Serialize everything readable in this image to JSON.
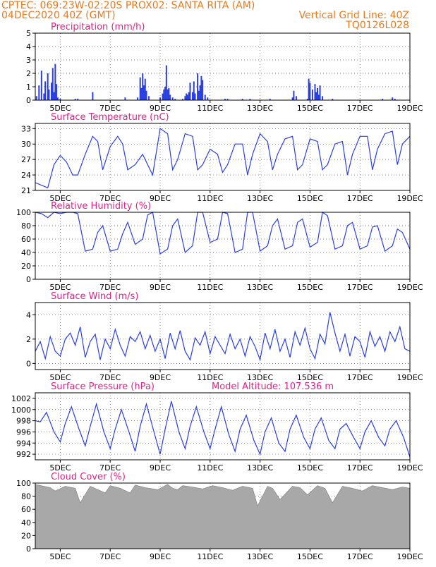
{
  "header": {
    "line1_left": "CPTEC:   069:23W-02:20S   PROX02: SANTA RITA (AM)",
    "line2_left": "04DEC2020 40Z (GMT)",
    "line2_right": "Vertical Grid Line: 40Z",
    "line3_right": "TQ0126L028"
  },
  "colors": {
    "series": "#2b3fe0",
    "cloud": "#a8a8a8",
    "header": "#e87a1e",
    "title": "#e0228c"
  },
  "x_axis": {
    "start_day": 4,
    "end_day": 19,
    "tick_days": [
      5,
      7,
      9,
      11,
      13,
      15,
      17,
      19
    ],
    "tick_labels": [
      "5DEC",
      "7DEC",
      "9DEC",
      "11DEC",
      "13DEC",
      "15DEC",
      "17DEC",
      "19DEC"
    ]
  },
  "chart_data": [
    {
      "id": "precip",
      "type": "bar",
      "title": "Precipitation (mm/h)",
      "ylim": [
        0,
        5
      ],
      "yticks": [
        0,
        1,
        2,
        3,
        4,
        5
      ],
      "grid": true,
      "x_unit": "day of December 2020",
      "x": [
        4.05,
        4.15,
        4.25,
        4.35,
        4.4,
        4.5,
        4.55,
        4.65,
        4.7,
        4.75,
        4.8,
        4.85,
        4.9,
        5.0,
        5.6,
        5.7,
        6.3,
        7.6,
        8.1,
        8.2,
        8.25,
        8.3,
        8.35,
        8.4,
        8.45,
        8.55,
        9.0,
        9.1,
        9.15,
        9.2,
        9.25,
        9.3,
        9.35,
        9.4,
        9.5,
        9.6,
        9.9,
        10.0,
        10.05,
        10.1,
        10.15,
        10.2,
        10.3,
        10.35,
        10.4,
        10.5,
        10.55,
        10.6,
        10.65,
        10.7,
        10.8,
        10.9,
        11.6,
        11.7,
        12.3,
        12.6,
        13.4,
        14.3,
        14.35,
        14.45,
        14.9,
        14.95,
        15.0,
        15.1,
        15.2,
        15.25,
        15.3,
        15.35,
        15.4,
        15.5,
        15.9,
        17.9,
        18.3,
        18.4
      ],
      "values": [
        0.3,
        1.1,
        2.2,
        0.5,
        1.4,
        2.0,
        0.8,
        1.3,
        2.4,
        0.6,
        2.7,
        1.2,
        0.2,
        0.1,
        0.1,
        0.1,
        0.6,
        0.2,
        0.2,
        1.7,
        0.9,
        2.0,
        1.1,
        1.6,
        0.7,
        0.3,
        0.2,
        0.5,
        0.8,
        1.0,
        2.6,
        0.8,
        0.9,
        0.4,
        0.2,
        0.1,
        0.1,
        0.3,
        0.5,
        0.4,
        0.6,
        1.3,
        0.6,
        1.4,
        0.5,
        2.0,
        0.7,
        1.1,
        1.8,
        1.5,
        0.4,
        0.2,
        0.1,
        0.1,
        0.1,
        0.1,
        0.1,
        0.2,
        0.7,
        0.3,
        0.1,
        1.6,
        1.3,
        0.8,
        1.2,
        0.6,
        0.9,
        0.4,
        1.1,
        0.3,
        0.1,
        0.1,
        0.2,
        0.1
      ]
    },
    {
      "id": "temperature",
      "type": "line",
      "title": "Surface Temperature (nC)",
      "ylim": [
        21,
        34
      ],
      "yticks": [
        21,
        24,
        27,
        30,
        33
      ],
      "grid": true,
      "x_unit": "day of December 2020",
      "x": [
        4.0,
        4.25,
        4.5,
        4.75,
        5.0,
        5.25,
        5.5,
        5.7,
        6.0,
        6.3,
        6.5,
        6.7,
        7.0,
        7.3,
        7.5,
        7.7,
        8.0,
        8.3,
        8.5,
        8.7,
        9.0,
        9.3,
        9.5,
        9.7,
        10.0,
        10.3,
        10.5,
        10.7,
        11.0,
        11.3,
        11.5,
        11.7,
        12.0,
        12.3,
        12.5,
        12.7,
        13.0,
        13.3,
        13.5,
        13.7,
        14.0,
        14.3,
        14.5,
        14.7,
        15.0,
        15.3,
        15.5,
        15.7,
        16.0,
        16.3,
        16.5,
        16.7,
        17.0,
        17.3,
        17.5,
        17.7,
        18.0,
        18.3,
        18.5,
        18.7,
        19.0
      ],
      "values": [
        22.5,
        22.0,
        21.5,
        26.0,
        27.8,
        26.5,
        24.0,
        24.0,
        28.0,
        31.5,
        30.5,
        25.0,
        29.5,
        31.5,
        30.0,
        25.0,
        26.0,
        28.0,
        26.0,
        24.0,
        33.0,
        32.0,
        25.0,
        27.0,
        32.0,
        31.5,
        25.0,
        26.0,
        29.0,
        28.0,
        24.5,
        26.0,
        30.0,
        30.0,
        24.0,
        28.0,
        32.0,
        30.5,
        25.0,
        28.0,
        31.0,
        31.5,
        25.0,
        26.0,
        31.0,
        30.5,
        25.0,
        26.0,
        30.0,
        30.5,
        24.0,
        28.0,
        31.5,
        31.5,
        25.0,
        29.0,
        32.0,
        32.5,
        26.0,
        30.0,
        31.5
      ]
    },
    {
      "id": "humidity",
      "type": "line",
      "title": "Relative Humidity (%)",
      "ylim": [
        0,
        100
      ],
      "yticks": [
        0,
        20,
        40,
        60,
        80,
        100
      ],
      "grid": true,
      "x_unit": "day of December 2020",
      "x": [
        4.0,
        4.25,
        4.5,
        4.75,
        5.0,
        5.25,
        5.5,
        5.7,
        6.0,
        6.3,
        6.5,
        6.7,
        7.0,
        7.3,
        7.5,
        7.7,
        8.0,
        8.3,
        8.5,
        8.7,
        9.0,
        9.3,
        9.5,
        9.7,
        10.0,
        10.3,
        10.5,
        10.7,
        11.0,
        11.3,
        11.5,
        11.7,
        12.0,
        12.3,
        12.5,
        12.7,
        13.0,
        13.3,
        13.5,
        13.7,
        14.0,
        14.3,
        14.5,
        14.7,
        15.0,
        15.3,
        15.5,
        15.7,
        16.0,
        16.3,
        16.5,
        16.7,
        17.0,
        17.3,
        17.5,
        17.7,
        18.0,
        18.3,
        18.5,
        18.7,
        19.0
      ],
      "values": [
        100,
        98,
        92,
        100,
        98,
        100,
        100,
        98,
        42,
        45,
        70,
        80,
        42,
        45,
        68,
        85,
        52,
        60,
        96,
        100,
        38,
        45,
        80,
        90,
        40,
        50,
        100,
        100,
        55,
        60,
        100,
        98,
        40,
        45,
        100,
        100,
        42,
        50,
        80,
        90,
        45,
        50,
        85,
        90,
        48,
        55,
        100,
        95,
        45,
        50,
        80,
        85,
        45,
        50,
        78,
        80,
        42,
        50,
        75,
        70,
        45
      ]
    },
    {
      "id": "wind",
      "type": "line",
      "title": "Surface Wind (m/s)",
      "ylim": [
        -0.5,
        5
      ],
      "yticks": [
        0,
        2,
        4
      ],
      "grid": true,
      "x_unit": "day of December 2020",
      "x": [
        4.0,
        4.2,
        4.4,
        4.6,
        4.8,
        5.0,
        5.2,
        5.4,
        5.6,
        5.8,
        6.0,
        6.2,
        6.4,
        6.6,
        6.8,
        7.0,
        7.2,
        7.4,
        7.6,
        7.8,
        8.0,
        8.2,
        8.4,
        8.6,
        8.8,
        9.0,
        9.2,
        9.4,
        9.6,
        9.8,
        10.0,
        10.2,
        10.4,
        10.6,
        10.8,
        11.0,
        11.2,
        11.4,
        11.6,
        11.8,
        12.0,
        12.2,
        12.4,
        12.6,
        12.8,
        13.0,
        13.2,
        13.4,
        13.6,
        13.8,
        14.0,
        14.2,
        14.4,
        14.6,
        14.8,
        15.0,
        15.2,
        15.4,
        15.6,
        15.8,
        16.0,
        16.2,
        16.4,
        16.6,
        16.8,
        17.0,
        17.2,
        17.4,
        17.6,
        17.8,
        18.0,
        18.2,
        18.4,
        18.6,
        18.8,
        19.0
      ],
      "values": [
        1.0,
        1.8,
        0.4,
        2.2,
        1.0,
        0.6,
        2.0,
        2.5,
        1.5,
        3.0,
        0.5,
        1.8,
        2.4,
        0.3,
        2.0,
        1.2,
        2.8,
        1.5,
        0.6,
        2.2,
        1.8,
        2.6,
        1.2,
        2.3,
        1.0,
        2.0,
        0.4,
        2.5,
        1.2,
        2.7,
        1.0,
        0.3,
        2.1,
        1.5,
        2.6,
        0.8,
        2.2,
        1.5,
        0.8,
        2.4,
        1.2,
        2.0,
        0.6,
        2.2,
        1.4,
        0.3,
        2.5,
        1.2,
        2.8,
        1.0,
        2.0,
        0.5,
        2.6,
        1.5,
        2.9,
        1.2,
        0.4,
        2.4,
        1.6,
        4.2,
        2.5,
        1.0,
        2.4,
        0.6,
        2.2,
        1.8,
        0.5,
        2.6,
        1.4,
        2.2,
        1.0,
        2.6,
        1.8,
        3.0,
        1.2,
        1.0
      ]
    },
    {
      "id": "pressure",
      "type": "line",
      "title": "Surface Pressure (hPa)",
      "annotation": "Model Altitude: 107.536 m",
      "ylim": [
        991,
        1003
      ],
      "yticks": [
        992,
        994,
        996,
        998,
        1000,
        1002
      ],
      "grid": true,
      "x_unit": "day of December 2020",
      "x": [
        4.0,
        4.2,
        4.45,
        4.75,
        5.0,
        5.2,
        5.45,
        5.75,
        6.0,
        6.2,
        6.45,
        6.75,
        7.0,
        7.2,
        7.45,
        7.75,
        8.0,
        8.2,
        8.45,
        8.75,
        9.0,
        9.2,
        9.45,
        9.75,
        10.0,
        10.2,
        10.45,
        10.75,
        11.0,
        11.2,
        11.45,
        11.75,
        12.0,
        12.2,
        12.45,
        12.75,
        13.0,
        13.2,
        13.45,
        13.75,
        14.0,
        14.2,
        14.45,
        14.75,
        15.0,
        15.2,
        15.45,
        15.75,
        16.0,
        16.2,
        16.45,
        16.75,
        17.0,
        17.2,
        17.45,
        17.75,
        18.0,
        18.2,
        18.45,
        18.75,
        19.0
      ],
      "values": [
        998.0,
        997.8,
        999.5,
        996.0,
        994.2,
        997.5,
        1000.5,
        996.5,
        993.5,
        997.0,
        1001.0,
        996.0,
        993.0,
        996.5,
        1000.0,
        996.0,
        992.5,
        997.0,
        1001.0,
        996.0,
        992.0,
        996.5,
        1001.5,
        996.0,
        993.0,
        997.0,
        1000.5,
        996.0,
        993.0,
        996.5,
        1000.5,
        995.5,
        992.5,
        996.5,
        999.0,
        994.5,
        992.0,
        996.0,
        998.5,
        994.0,
        992.5,
        996.5,
        999.0,
        995.0,
        993.0,
        996.5,
        998.5,
        994.5,
        993.0,
        996.5,
        997.5,
        995.0,
        993.0,
        996.0,
        998.0,
        995.0,
        993.5,
        996.5,
        998.0,
        995.0,
        991.5
      ]
    },
    {
      "id": "cloud",
      "type": "area",
      "title": "Cloud Cover (%)",
      "ylim": [
        0,
        100
      ],
      "yticks": [
        0,
        20,
        40,
        60,
        80,
        100
      ],
      "grid": true,
      "x_unit": "day of December 2020",
      "x": [
        4.0,
        4.6,
        4.8,
        5.2,
        5.6,
        5.8,
        6.2,
        6.5,
        6.8,
        7.0,
        7.4,
        7.8,
        8.0,
        8.4,
        8.9,
        9.3,
        9.5,
        9.7,
        9.9,
        10.3,
        10.7,
        11.1,
        11.5,
        11.9,
        12.3,
        12.7,
        12.9,
        13.3,
        13.5,
        13.8,
        14.3,
        14.6,
        14.9,
        15.3,
        15.6,
        15.9,
        16.3,
        16.7,
        17.1,
        17.5,
        17.9,
        18.3,
        18.7,
        19.0
      ],
      "values": [
        98,
        93,
        88,
        95,
        92,
        70,
        95,
        90,
        85,
        96,
        92,
        85,
        97,
        93,
        90,
        98,
        92,
        90,
        96,
        94,
        91,
        96,
        93,
        89,
        95,
        92,
        65,
        95,
        92,
        75,
        95,
        93,
        82,
        96,
        92,
        70,
        95,
        92,
        88,
        96,
        93,
        90,
        94,
        92
      ]
    }
  ]
}
